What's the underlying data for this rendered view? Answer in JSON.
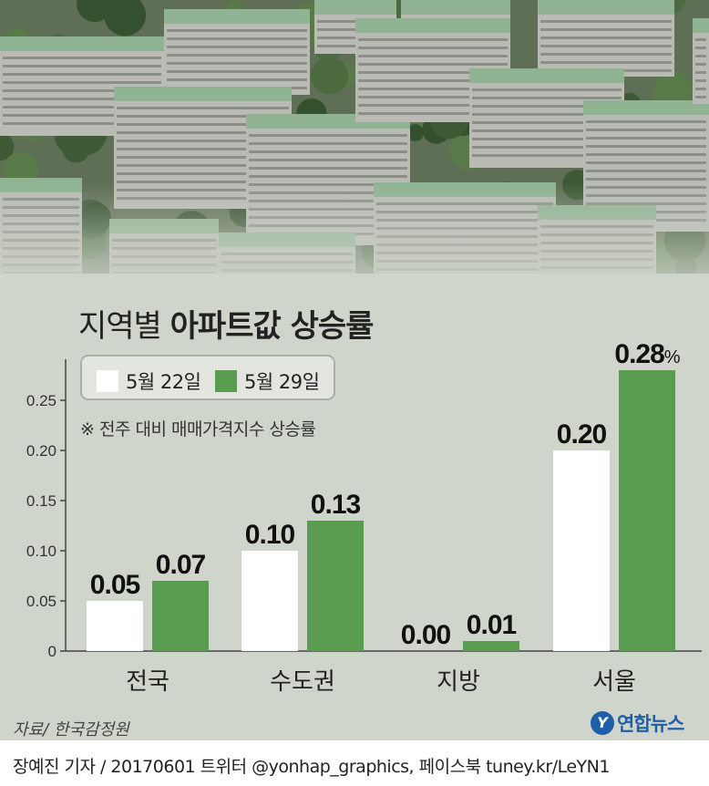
{
  "title": {
    "light": "지역별",
    "bold": "아파트값 상승률"
  },
  "note": "※ 전주 대비 매매가격지수 상승률",
  "source": "자료/ 한국감정원",
  "logo": {
    "mark": "Y",
    "text": "연합뉴스"
  },
  "footer": "장예진 기자 / 20170601 트위터 @yonhap_graphics, 페이스북 tuney.kr/LeYN1",
  "colors": {
    "prev": "#ffffff",
    "curr": "#5a9c50",
    "panel": "#cfd5cb",
    "axis": "#444444"
  },
  "photo": {
    "subject": "aerial view of apartment complex"
  },
  "chart_data": {
    "type": "bar",
    "categories": [
      "전국",
      "수도권",
      "지방",
      "서울"
    ],
    "series": [
      {
        "name": "5월 22일",
        "values": [
          0.05,
          0.1,
          0.0,
          0.2
        ],
        "labels": [
          "0.05",
          "0.10",
          "0.00",
          "0.20"
        ]
      },
      {
        "name": "5월 29일",
        "values": [
          0.07,
          0.13,
          0.01,
          0.28
        ],
        "labels": [
          "0.07",
          "0.13",
          "0.01",
          "0.28"
        ]
      }
    ],
    "unit_suffix": "%",
    "ylim": [
      0,
      0.3
    ],
    "yticks": [
      0,
      0.05,
      0.1,
      0.15,
      0.2,
      0.25
    ],
    "ytick_labels": [
      "0",
      "0.05",
      "0.10",
      "0.15",
      "0.20",
      "0.25"
    ],
    "legend": "top-left",
    "grid": false
  }
}
